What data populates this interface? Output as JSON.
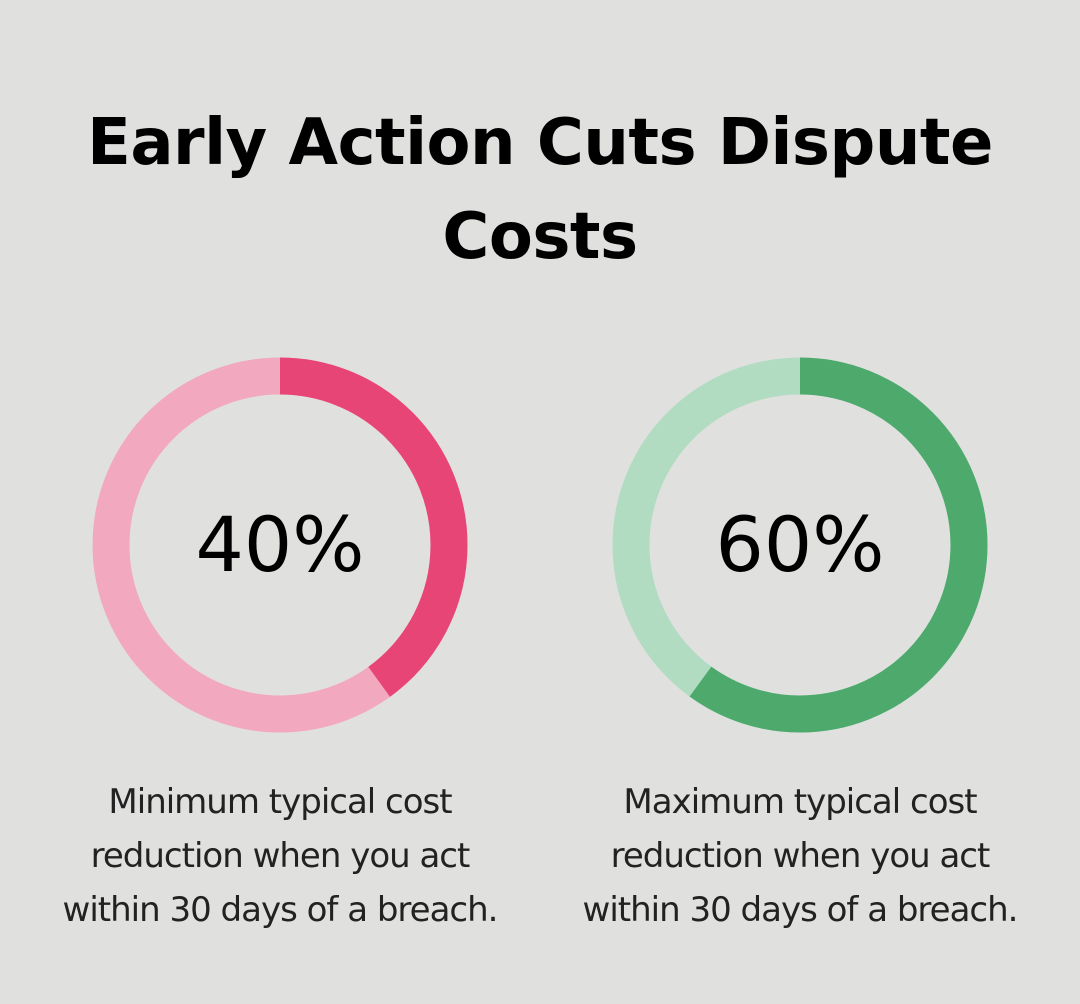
{
  "title_lines": [
    "Early Action Cuts Dispute",
    "Costs"
  ],
  "chart_data": [
    {
      "type": "pie",
      "value": 40,
      "value_label": "40%",
      "caption_lines": [
        "Minimum typical cost",
        "reduction when you act",
        "within 30 days of a breach."
      ],
      "colors": {
        "filled": "#e84577",
        "remaining": "#f2a9c0"
      }
    },
    {
      "type": "pie",
      "value": 60,
      "value_label": "60%",
      "caption_lines": [
        "Maximum typical cost",
        "reduction when you act",
        "within 30 days of a breach."
      ],
      "colors": {
        "filled": "#4ea96d",
        "remaining": "#b1dcc1"
      }
    }
  ]
}
